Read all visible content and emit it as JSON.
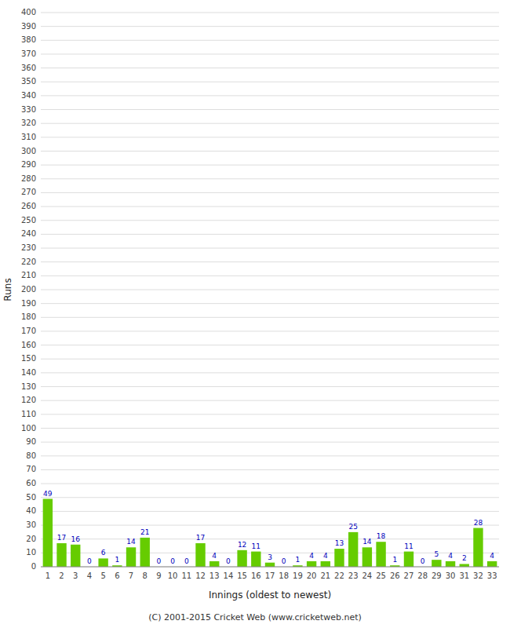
{
  "chart_data": {
    "type": "bar",
    "xlabel": "Innings (oldest to newest)",
    "ylabel": "Runs",
    "footer": "(C) 2001-2015 Cricket Web (www.cricketweb.net)",
    "categories": [
      "1",
      "2",
      "3",
      "4",
      "5",
      "6",
      "7",
      "8",
      "9",
      "10",
      "11",
      "12",
      "13",
      "14",
      "15",
      "16",
      "17",
      "18",
      "19",
      "20",
      "21",
      "22",
      "23",
      "24",
      "25",
      "26",
      "27",
      "28",
      "29",
      "30",
      "31",
      "32",
      "33"
    ],
    "values": [
      49,
      17,
      16,
      0,
      6,
      1,
      14,
      21,
      0,
      0,
      0,
      17,
      4,
      0,
      12,
      11,
      3,
      0,
      1,
      4,
      4,
      13,
      25,
      14,
      18,
      1,
      11,
      0,
      5,
      4,
      2,
      28,
      4
    ],
    "color": "#66cc00",
    "ylim": [
      0,
      400
    ],
    "yticks": [
      0,
      10,
      20,
      30,
      40,
      50,
      60,
      70,
      80,
      90,
      100,
      110,
      120,
      130,
      140,
      150,
      160,
      170,
      180,
      190,
      200,
      210,
      220,
      230,
      240,
      250,
      260,
      270,
      280,
      290,
      300,
      310,
      320,
      330,
      340,
      350,
      360,
      370,
      380,
      390,
      400
    ],
    "grid": true,
    "data_labels": true
  }
}
